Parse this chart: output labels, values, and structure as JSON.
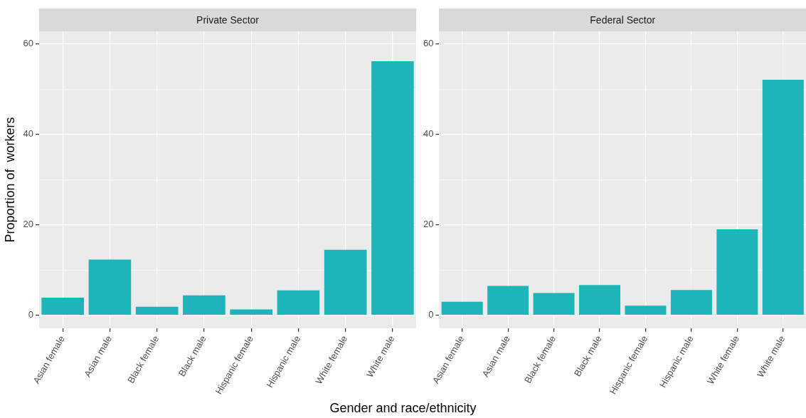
{
  "chart_data": [
    {
      "type": "bar",
      "title": "Private Sector",
      "ylabel": "Proportion of  workers",
      "xlabel": "Gender and race/ethnicity",
      "categories": [
        "Asian female",
        "Asian male",
        "Black female",
        "Black male",
        "Hispanic female",
        "Hispanic male",
        "White female",
        "White male"
      ],
      "values": [
        3.9,
        12.3,
        1.9,
        4.4,
        1.3,
        5.5,
        14.5,
        56.2
      ],
      "color": "#1eb4b8",
      "ylim": [
        -2.9,
        62.8
      ],
      "yticks": [
        0,
        {
          "value": 10,
          "label": null
        },
        20,
        {
          "value": 30,
          "label": null
        },
        40,
        {
          "value": 50,
          "label": null
        },
        60
      ],
      "grid": true
    },
    {
      "type": "bar",
      "title": "Federal Sector",
      "categories": [
        "Asian female",
        "Asian male",
        "Black female",
        "Black male",
        "Hispanic female",
        "Hispanic male",
        "White female",
        "White male"
      ],
      "values": [
        3.0,
        6.5,
        4.9,
        6.7,
        2.1,
        5.6,
        19.0,
        52.1
      ],
      "color": "#1eb4b8",
      "ylim": [
        -2.9,
        62.8
      ],
      "yticks": [
        0,
        {
          "value": 10,
          "label": null
        },
        20,
        {
          "value": 30,
          "label": null
        },
        40,
        {
          "value": 50,
          "label": null
        },
        60
      ],
      "grid": true
    }
  ]
}
